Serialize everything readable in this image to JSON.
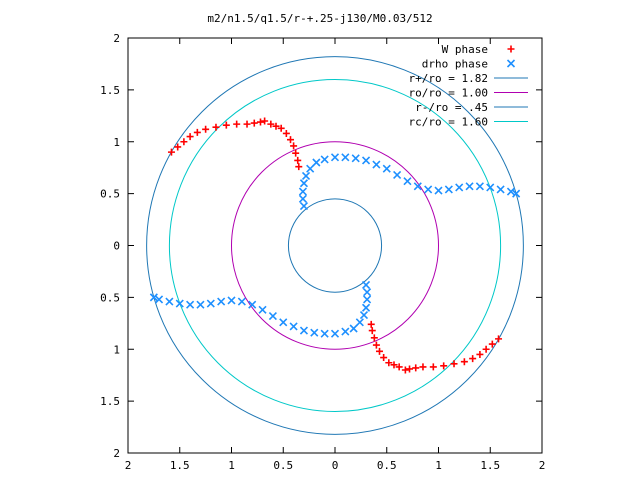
{
  "chart_data": {
    "type": "scatter",
    "title": "m2/n1.5/q1.5/r-+.25-j130/M0.03/512",
    "xlabel": "",
    "ylabel": "",
    "xlim": [
      -2,
      2
    ],
    "ylim": [
      -2,
      2
    ],
    "x_ticks": [
      -2,
      -1.5,
      -1,
      -0.5,
      0,
      0.5,
      1,
      1.5,
      2
    ],
    "x_tick_labels": [
      "2",
      "1.5",
      "1",
      "0.5",
      "0",
      "0.5",
      "1",
      "1.5",
      "2"
    ],
    "y_ticks": [
      2,
      1.5,
      1,
      0.5,
      0,
      -0.5,
      -1,
      -1.5,
      -2
    ],
    "y_tick_labels": [
      "2",
      "1.5",
      "1",
      "0.5",
      "0",
      "0.5",
      "1",
      "1.5",
      "2"
    ],
    "grid": false,
    "legend_position": "top-right",
    "series": [
      {
        "name": "W phase",
        "marker": "plus",
        "color": "#ff0000",
        "points": [
          [
            -1.58,
            0.9
          ],
          [
            -1.52,
            0.95
          ],
          [
            -1.46,
            1.0
          ],
          [
            -1.4,
            1.05
          ],
          [
            -1.33,
            1.09
          ],
          [
            -1.25,
            1.12
          ],
          [
            -1.15,
            1.14
          ],
          [
            -1.05,
            1.16
          ],
          [
            -0.95,
            1.17
          ],
          [
            -0.85,
            1.17
          ],
          [
            -0.78,
            1.18
          ],
          [
            -0.72,
            1.19
          ],
          [
            -0.68,
            1.2
          ],
          [
            -0.62,
            1.17
          ],
          [
            -0.57,
            1.15
          ],
          [
            -0.52,
            1.13
          ],
          [
            -0.47,
            1.08
          ],
          [
            -0.43,
            1.02
          ],
          [
            -0.4,
            0.96
          ],
          [
            -0.38,
            0.89
          ],
          [
            -0.36,
            0.82
          ],
          [
            -0.35,
            0.76
          ],
          [
            1.58,
            -0.9
          ],
          [
            1.52,
            -0.95
          ],
          [
            1.46,
            -1.0
          ],
          [
            1.4,
            -1.05
          ],
          [
            1.33,
            -1.09
          ],
          [
            1.25,
            -1.12
          ],
          [
            1.15,
            -1.14
          ],
          [
            1.05,
            -1.16
          ],
          [
            0.95,
            -1.17
          ],
          [
            0.85,
            -1.17
          ],
          [
            0.78,
            -1.18
          ],
          [
            0.72,
            -1.19
          ],
          [
            0.68,
            -1.2
          ],
          [
            0.62,
            -1.17
          ],
          [
            0.57,
            -1.15
          ],
          [
            0.52,
            -1.13
          ],
          [
            0.47,
            -1.08
          ],
          [
            0.43,
            -1.02
          ],
          [
            0.4,
            -0.96
          ],
          [
            0.38,
            -0.89
          ],
          [
            0.36,
            -0.82
          ],
          [
            0.35,
            -0.76
          ]
        ]
      },
      {
        "name": "drho phase",
        "marker": "cross",
        "color": "#1e90ff",
        "points": [
          [
            -0.3,
            0.38
          ],
          [
            -0.31,
            0.45
          ],
          [
            -0.31,
            0.52
          ],
          [
            -0.3,
            0.6
          ],
          [
            -0.28,
            0.67
          ],
          [
            -0.24,
            0.74
          ],
          [
            -0.18,
            0.8
          ],
          [
            -0.1,
            0.83
          ],
          [
            0.0,
            0.85
          ],
          [
            0.1,
            0.85
          ],
          [
            0.2,
            0.84
          ],
          [
            0.3,
            0.82
          ],
          [
            0.4,
            0.78
          ],
          [
            0.5,
            0.74
          ],
          [
            0.6,
            0.68
          ],
          [
            0.7,
            0.62
          ],
          [
            0.8,
            0.57
          ],
          [
            0.9,
            0.54
          ],
          [
            1.0,
            0.53
          ],
          [
            1.1,
            0.54
          ],
          [
            1.2,
            0.56
          ],
          [
            1.3,
            0.57
          ],
          [
            1.4,
            0.57
          ],
          [
            1.5,
            0.56
          ],
          [
            1.6,
            0.54
          ],
          [
            1.7,
            0.52
          ],
          [
            1.75,
            0.5
          ],
          [
            0.3,
            -0.38
          ],
          [
            0.31,
            -0.45
          ],
          [
            0.31,
            -0.52
          ],
          [
            0.3,
            -0.6
          ],
          [
            0.28,
            -0.67
          ],
          [
            0.24,
            -0.74
          ],
          [
            0.18,
            -0.8
          ],
          [
            0.1,
            -0.83
          ],
          [
            0.0,
            -0.85
          ],
          [
            -0.1,
            -0.85
          ],
          [
            -0.2,
            -0.84
          ],
          [
            -0.3,
            -0.82
          ],
          [
            -0.4,
            -0.78
          ],
          [
            -0.5,
            -0.74
          ],
          [
            -0.6,
            -0.68
          ],
          [
            -0.7,
            -0.62
          ],
          [
            -0.8,
            -0.57
          ],
          [
            -0.9,
            -0.54
          ],
          [
            -1.0,
            -0.53
          ],
          [
            -1.1,
            -0.54
          ],
          [
            -1.2,
            -0.56
          ],
          [
            -1.3,
            -0.57
          ],
          [
            -1.4,
            -0.57
          ],
          [
            -1.5,
            -0.56
          ],
          [
            -1.6,
            -0.54
          ],
          [
            -1.7,
            -0.52
          ],
          [
            -1.75,
            -0.5
          ]
        ]
      }
    ],
    "circles": [
      {
        "label": "r+/ro = 1.82",
        "radius": 1.82,
        "color": "#1f77b4"
      },
      {
        "label": "ro/ro = 1.00",
        "radius": 1.0,
        "color": "#b000b0"
      },
      {
        "label": "r-/ro = .45",
        "radius": 0.45,
        "color": "#1f77b4"
      },
      {
        "label": "rc/ro = 1.60",
        "radius": 1.6,
        "color": "#00c8c8"
      }
    ]
  }
}
